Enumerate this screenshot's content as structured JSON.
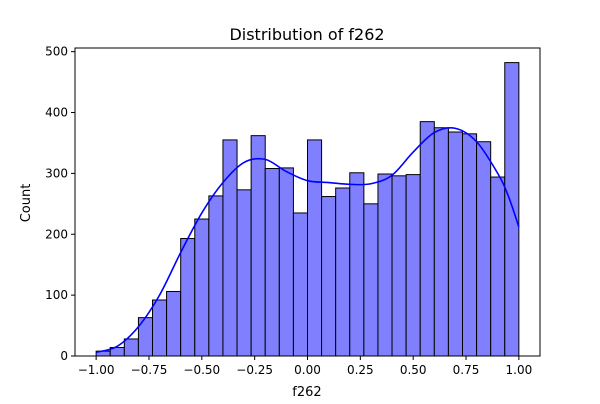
{
  "chart_data": {
    "type": "bar",
    "title": "Distribution of f262",
    "xlabel": "f262",
    "ylabel": "Count",
    "bin_edges": [
      -1.0,
      -0.93333,
      -0.86667,
      -0.8,
      -0.73333,
      -0.66667,
      -0.6,
      -0.53333,
      -0.46667,
      -0.4,
      -0.33333,
      -0.26667,
      -0.2,
      -0.13333,
      -0.06667,
      0.0,
      0.06667,
      0.13333,
      0.2,
      0.26667,
      0.33333,
      0.4,
      0.46667,
      0.53333,
      0.6,
      0.66667,
      0.73333,
      0.8,
      0.86667,
      0.93333,
      1.0
    ],
    "values": [
      8,
      14,
      28,
      63,
      92,
      106,
      193,
      225,
      263,
      355,
      273,
      362,
      308,
      309,
      235,
      355,
      262,
      276,
      301,
      250,
      299,
      296,
      298,
      385,
      375,
      368,
      365,
      352,
      294,
      482
    ],
    "kde": {
      "x": [
        -1.0,
        -0.9,
        -0.8,
        -0.7,
        -0.6,
        -0.5,
        -0.4,
        -0.3,
        -0.2,
        -0.1,
        0.0,
        0.1,
        0.2,
        0.3,
        0.4,
        0.5,
        0.6,
        0.7,
        0.8,
        0.9,
        0.95,
        1.0
      ],
      "y": [
        6,
        16,
        48,
        100,
        170,
        235,
        285,
        318,
        323,
        303,
        288,
        285,
        282,
        283,
        297,
        335,
        367,
        374,
        352,
        300,
        263,
        212
      ]
    },
    "xlim": [
      -1.1,
      1.1
    ],
    "ylim": [
      0,
      506
    ],
    "xticks": [
      -1.0,
      -0.75,
      -0.5,
      -0.25,
      0.0,
      0.25,
      0.5,
      0.75,
      1.0
    ],
    "xtick_labels": [
      "−1.00",
      "−0.75",
      "−0.50",
      "−0.25",
      "0.00",
      "0.25",
      "0.50",
      "0.75",
      "1.00"
    ],
    "yticks": [
      0,
      100,
      200,
      300,
      400,
      500
    ],
    "ytick_labels": [
      "0",
      "100",
      "200",
      "300",
      "400",
      "500"
    ],
    "bar_fill": "#8080ff",
    "bar_edge": "#000000",
    "kde_color": "#0000ff",
    "grid": false,
    "legend": "none"
  }
}
